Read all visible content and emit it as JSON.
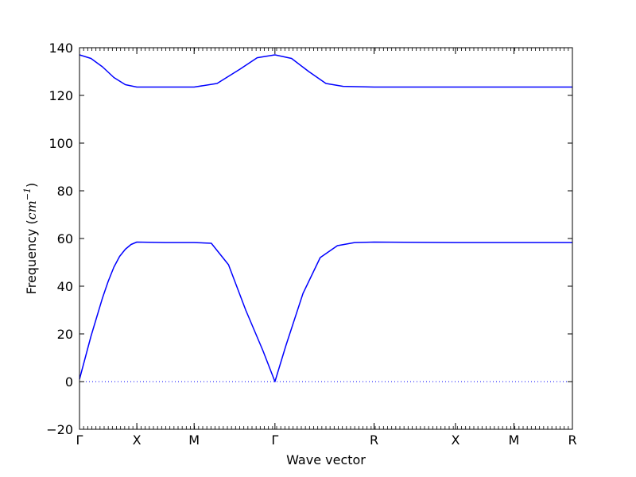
{
  "chart_data": {
    "type": "line",
    "title": "",
    "xlabel": "Wave vector",
    "ylabel": {
      "text": "Frequency (",
      "unit_base": "cm",
      "unit_exp": "−1",
      "close": ")"
    },
    "ylim": [
      -20,
      140
    ],
    "yticks": [
      -20,
      0,
      20,
      40,
      60,
      80,
      100,
      120,
      140
    ],
    "ytick_labels": [
      "−20",
      "0",
      "20",
      "40",
      "60",
      "80",
      "100",
      "120",
      "140"
    ],
    "xlim": [
      0,
      8.6
    ],
    "xticks": [
      {
        "x": 0.0,
        "label": "Γ"
      },
      {
        "x": 1.0,
        "label": "X"
      },
      {
        "x": 2.0,
        "label": "M"
      },
      {
        "x": 3.41,
        "label": "Γ"
      },
      {
        "x": 5.14,
        "label": "R"
      },
      {
        "x": 6.56,
        "label": "X"
      },
      {
        "x": 7.58,
        "label": "M"
      },
      {
        "x": 8.6,
        "label": "R"
      }
    ],
    "zero_line": {
      "y": 0,
      "style": "dotted",
      "color": "#0000ff"
    },
    "grid": false,
    "series": [
      {
        "color": "#0000ff",
        "x": [
          0,
          0.1,
          0.2,
          0.3,
          0.4,
          0.5,
          0.6,
          0.7,
          0.8,
          0.9,
          1.0,
          1.5,
          2.0,
          2.3,
          2.6,
          2.9,
          3.2,
          3.41,
          3.6,
          3.9,
          4.2,
          4.5,
          4.8,
          5.14,
          6.56,
          7.58,
          8.6
        ],
        "y": [
          1,
          10,
          19,
          27,
          35,
          42,
          48,
          52.5,
          55.5,
          57.5,
          58.5,
          58.3,
          58.3,
          58.0,
          49,
          30,
          13,
          0,
          15,
          37,
          52,
          57,
          58.3,
          58.5,
          58.3,
          58.3,
          58.3
        ]
      },
      {
        "color": "#0000ff",
        "x": [
          0,
          0.2,
          0.4,
          0.6,
          0.8,
          1.0,
          1.5,
          2.0,
          2.4,
          2.8,
          3.1,
          3.41,
          3.7,
          4.0,
          4.3,
          4.6,
          5.14,
          6.56,
          7.58,
          8.6
        ],
        "y": [
          137,
          135.5,
          132,
          127.5,
          124.5,
          123.5,
          123.5,
          123.5,
          125,
          131,
          135.8,
          137,
          135.5,
          130,
          125,
          123.8,
          123.5,
          123.5,
          123.5,
          123.5
        ]
      }
    ]
  }
}
